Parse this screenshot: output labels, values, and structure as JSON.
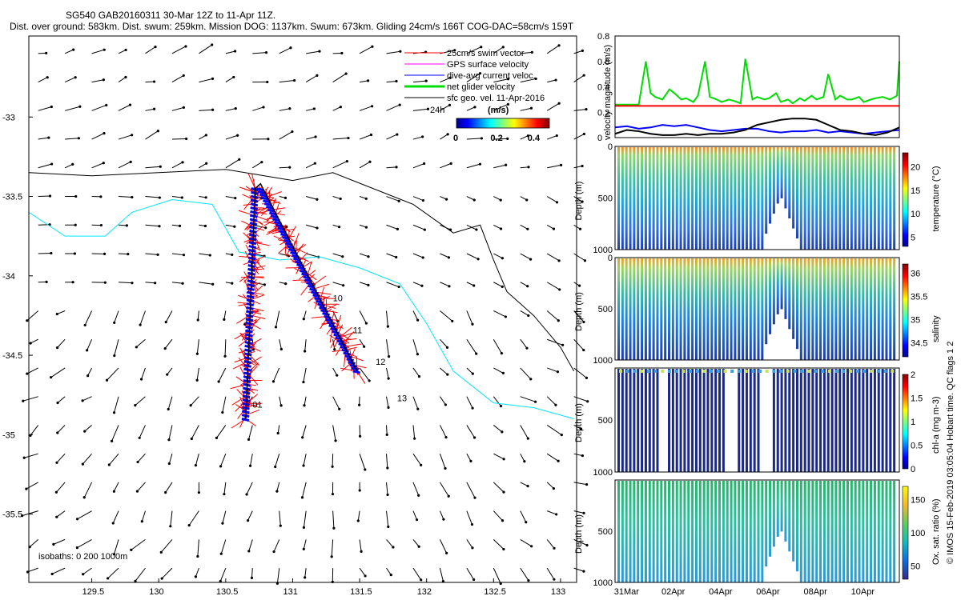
{
  "header": {
    "line1": "SG540 GAB20160311 30-Mar 12Z to 11-Apr 11Z.",
    "line2": "Dist. over ground: 583km. Dist. swum: 259km. Mission DOG: 1137km. Swum: 673km. Gliding 24cm/s 166T COG-DAC=58cm/s 159T"
  },
  "side_credit": "© IMOS 15-Feb-2019 03:05:04 Hobart time. QC flags 1  2",
  "map": {
    "x_ticks": [
      "129.5",
      "130",
      "130.5",
      "131",
      "131.5",
      "132",
      "132.5",
      "133"
    ],
    "x_tick_values": [
      129.5,
      130,
      130.5,
      131,
      131.5,
      132,
      132.5,
      133
    ],
    "y_ticks": [
      "-33",
      "-33.5",
      "-34",
      "-34.5",
      "-35",
      "-35.5"
    ],
    "y_tick_values": [
      -33,
      -33.5,
      -34,
      -34.5,
      -35,
      -35.5
    ],
    "xlim": [
      129.03,
      133.12
    ],
    "ylim": [
      -35.93,
      -32.49
    ],
    "isobaths_label": "isobaths: 0   200   1000m",
    "legend": [
      {
        "label": "25cm/s swim vector",
        "color": "#ff0000"
      },
      {
        "label": "GPS surface velocity",
        "color": "#ff00ff"
      },
      {
        "label": "dive-avg current veloc.",
        "color": "#0000ff"
      },
      {
        "label": "net glider velocity",
        "color": "#00dd00"
      },
      {
        "label": "sfc geo. vel. 11-Apr-2016",
        "color": "#000000"
      }
    ],
    "scale_label": "24h",
    "colorbar": {
      "title": "(m/s)",
      "ticks": [
        "0",
        "0.2",
        "0.4"
      ],
      "tick_values": [
        0,
        0.2,
        0.4
      ],
      "range": [
        0,
        0.5
      ]
    },
    "day_labels": [
      {
        "label": "10",
        "lon": 131.3,
        "lat": -34.16
      },
      {
        "label": "11",
        "lon": 131.45,
        "lat": -34.36
      },
      {
        "label": "12",
        "lon": 131.62,
        "lat": -34.56
      },
      {
        "label": "13",
        "lon": 131.78,
        "lat": -34.79
      },
      {
        "label": "01",
        "lon": 130.7,
        "lat": -34.83
      }
    ]
  },
  "chart_data": [
    {
      "type": "line",
      "title": "",
      "ylabel": "velocity magnitude (m/s)",
      "xlim": [
        0,
        12
      ],
      "ylim": [
        0,
        0.8
      ],
      "y_ticks": [
        "0",
        "0.2",
        "0.4",
        "0.6",
        "0.8"
      ],
      "y_tick_values": [
        0,
        0.2,
        0.4,
        0.6,
        0.8
      ],
      "series": [
        {
          "name": "net glider velocity",
          "color": "#00dd00",
          "x": [
            0,
            1,
            1.3,
            1.5,
            1.7,
            2,
            2.3,
            2.5,
            2.8,
            3,
            3.3,
            3.5,
            3.8,
            4,
            4.3,
            4.5,
            4.8,
            5,
            5.3,
            5.5,
            5.8,
            6,
            6.3,
            6.5,
            6.8,
            7,
            7.3,
            7.5,
            7.8,
            8,
            8.3,
            8.5,
            8.8,
            9,
            9.3,
            9.5,
            9.8,
            10,
            10.3,
            10.5,
            10.8,
            11,
            11.3,
            11.6,
            11.9,
            12
          ],
          "values": [
            0.26,
            0.26,
            0.6,
            0.35,
            0.32,
            0.3,
            0.38,
            0.35,
            0.3,
            0.31,
            0.28,
            0.33,
            0.6,
            0.32,
            0.3,
            0.28,
            0.3,
            0.29,
            0.27,
            0.62,
            0.3,
            0.32,
            0.3,
            0.31,
            0.35,
            0.28,
            0.3,
            0.27,
            0.31,
            0.29,
            0.33,
            0.3,
            0.32,
            0.5,
            0.3,
            0.33,
            0.3,
            0.3,
            0.32,
            0.28,
            0.3,
            0.31,
            0.32,
            0.3,
            0.33,
            0.6
          ]
        },
        {
          "name": "swim speed",
          "color": "#ff0000",
          "x": [
            0,
            12
          ],
          "values": [
            0.25,
            0.25
          ]
        },
        {
          "name": "dive-avg current",
          "color": "#0000ff",
          "x": [
            0,
            0.5,
            1,
            1.5,
            2,
            2.5,
            3,
            3.5,
            4,
            4.5,
            5,
            5.5,
            6,
            6.5,
            7,
            7.5,
            8,
            8.5,
            9,
            9.5,
            10,
            10.5,
            11,
            11.5,
            12
          ],
          "values": [
            0.08,
            0.09,
            0.07,
            0.08,
            0.1,
            0.09,
            0.1,
            0.08,
            0.06,
            0.05,
            0.06,
            0.07,
            0.07,
            0.05,
            0.04,
            0.05,
            0.05,
            0.06,
            0.04,
            0.05,
            0.04,
            0.03,
            0.04,
            0.05,
            0.06
          ]
        },
        {
          "name": "sfc geo. vel.",
          "color": "#000000",
          "x": [
            0,
            0.5,
            1,
            1.5,
            2,
            2.5,
            3,
            3.5,
            4,
            4.5,
            5,
            5.5,
            6,
            6.5,
            7,
            7.5,
            8,
            8.5,
            9,
            9.5,
            10,
            10.5,
            11,
            11.5,
            12
          ],
          "values": [
            0.03,
            0.06,
            0.05,
            0.03,
            0.02,
            0.02,
            0.03,
            0.02,
            0.03,
            0.03,
            0.04,
            0.06,
            0.1,
            0.12,
            0.14,
            0.15,
            0.15,
            0.14,
            0.1,
            0.06,
            0.05,
            0.03,
            0.02,
            0.04,
            0.08
          ]
        }
      ]
    },
    {
      "type": "scatter",
      "ylabel": "Depth (m)",
      "clabel": "temperature (°C)",
      "ylim": [
        0,
        1000
      ],
      "clim": [
        3,
        23
      ],
      "c_ticks": [
        "5",
        "10",
        "15",
        "20"
      ],
      "c_tick_values": [
        5,
        10,
        15,
        20
      ],
      "y_ticks": [
        "0",
        "500",
        "1000"
      ],
      "y_tick_values": [
        0,
        500,
        1000
      ]
    },
    {
      "type": "scatter",
      "ylabel": "Depth (m)",
      "clabel": "salinity",
      "ylim": [
        0,
        1000
      ],
      "clim": [
        34.2,
        36.2
      ],
      "c_ticks": [
        "34.5",
        "35",
        "35.5",
        "36"
      ],
      "c_tick_values": [
        34.5,
        35,
        35.5,
        36
      ],
      "y_ticks": [
        "0",
        "500",
        "1000"
      ],
      "y_tick_values": [
        0,
        500,
        1000
      ]
    },
    {
      "type": "scatter",
      "ylabel": "Depth (m)",
      "clabel": "chl-a (mg m-3)",
      "ylim": [
        0,
        1000
      ],
      "clim": [
        0,
        2
      ],
      "c_ticks": [
        "0",
        "0.5",
        "1",
        "1.5",
        "2"
      ],
      "c_tick_values": [
        0,
        0.5,
        1,
        1.5,
        2
      ],
      "y_ticks": [
        "500",
        "1000"
      ],
      "y_tick_values": [
        500,
        1000
      ]
    },
    {
      "type": "scatter",
      "ylabel": "Depth (m)",
      "clabel": "Ox. sat. ratio (%)",
      "ylim": [
        0,
        1000
      ],
      "clim": [
        30,
        170
      ],
      "c_ticks": [
        "50",
        "100",
        "150"
      ],
      "c_tick_values": [
        50,
        100,
        150
      ],
      "y_ticks": [
        "500",
        "1000"
      ],
      "y_tick_values": [
        500,
        1000
      ]
    }
  ],
  "time_axis": {
    "ticks": [
      "31Mar",
      "02Apr",
      "04Apr",
      "06Apr",
      "08Apr",
      "10Apr"
    ],
    "tick_values": [
      0.5,
      2.5,
      4.5,
      6.5,
      8.5,
      10.5
    ]
  }
}
